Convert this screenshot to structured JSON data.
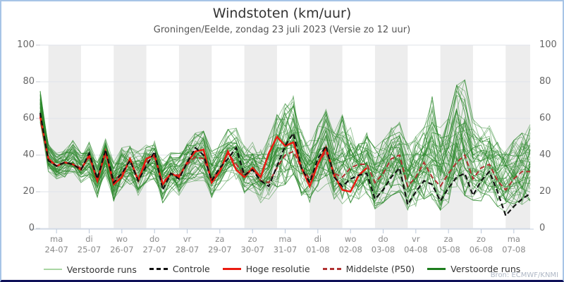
{
  "header": {
    "title": "Windstoten (km/uur)",
    "subtitle": "Groningen/Eelde, zondag 23 juli 2023 (Versie zo 12 uur)"
  },
  "source": "Bron: ECMWF/KNMI",
  "colors": {
    "frame_border": "#a7c4e6",
    "frame_bottom": "#0e1058",
    "band_gray": "#ededed",
    "gridline": "#dfe3ea",
    "axis_line": "#c2cede",
    "ensemble_green": "#2d8a2d",
    "legend_light_green": "#a9d6a3",
    "control_black": "#111111",
    "hres_red": "#ea1a10",
    "p50_darkred": "#b13232",
    "dark_green": "#1d7d1d",
    "text_title": "#333333",
    "text_axis": "#8a8a8a"
  },
  "chart_data": {
    "type": "line",
    "title": "Windstoten (km/uur)",
    "subtitle": "Groningen/Eelde, zondag 23 juli 2023 (Versie zo 12 uur)",
    "ylabel": "",
    "xlabel": "",
    "ylim": [
      0,
      100
    ],
    "yticks": [
      0,
      20,
      40,
      60,
      80,
      100
    ],
    "grid": true,
    "legend_position": "bottom",
    "x_start": "2023-07-23 12:00",
    "x_step_hours": 6,
    "n_points": 61,
    "x_tick_labels": [
      {
        "day": "ma",
        "date": "24-07"
      },
      {
        "day": "di",
        "date": "25-07"
      },
      {
        "day": "wo",
        "date": "26-07"
      },
      {
        "day": "do",
        "date": "27-07"
      },
      {
        "day": "vr",
        "date": "28-07"
      },
      {
        "day": "za",
        "date": "29-07"
      },
      {
        "day": "zo",
        "date": "30-07"
      },
      {
        "day": "ma",
        "date": "31-07"
      },
      {
        "day": "di",
        "date": "01-08"
      },
      {
        "day": "wo",
        "date": "02-08"
      },
      {
        "day": "do",
        "date": "03-08"
      },
      {
        "day": "vr",
        "date": "04-08"
      },
      {
        "day": "za",
        "date": "05-08"
      },
      {
        "day": "zo",
        "date": "06-08"
      },
      {
        "day": "ma",
        "date": "07-08"
      }
    ],
    "series": [
      {
        "name": "Controle",
        "style": "dashed-black",
        "values": [
          63,
          37,
          34,
          36,
          35,
          32,
          41,
          27,
          43,
          25,
          30,
          37,
          26,
          34,
          42,
          21,
          30,
          27,
          36,
          44,
          40,
          26,
          33,
          38,
          44,
          29,
          32,
          26,
          23,
          34,
          45,
          52,
          33,
          25,
          38,
          45,
          28,
          23,
          27,
          29,
          30,
          16,
          21,
          28,
          33,
          13,
          20,
          26,
          24,
          15,
          22,
          28,
          30,
          18,
          26,
          31,
          20,
          7,
          12,
          16,
          19
        ]
      },
      {
        "name": "Hoge resolutie",
        "style": "solid-red",
        "values": [
          61,
          38,
          34,
          36,
          35,
          32,
          40,
          26,
          42,
          24,
          28,
          38,
          26,
          38,
          40,
          24,
          30,
          28,
          36,
          42,
          43,
          25,
          31,
          42,
          32,
          28,
          33,
          28,
          41,
          50,
          45,
          47,
          33,
          23,
          35,
          44,
          29,
          21,
          20,
          29,
          33
        ]
      },
      {
        "name": "Middelste (P50)",
        "style": "dashed-darkred",
        "values": [
          62,
          37,
          34,
          36,
          35,
          33,
          39,
          27,
          41,
          26,
          30,
          37,
          27,
          36,
          39,
          25,
          30,
          29,
          35,
          39,
          38,
          27,
          32,
          41,
          35,
          29,
          33,
          26,
          25,
          33,
          40,
          42,
          33,
          27,
          35,
          42,
          30,
          28,
          33,
          35,
          35,
          25,
          30,
          38,
          40,
          23,
          28,
          36,
          28,
          23,
          30,
          36,
          40,
          27,
          33,
          35,
          26,
          21,
          27,
          31,
          31
        ]
      }
    ],
    "ensemble": {
      "name": "Verstoorde runs",
      "count": 48,
      "min": [
        57,
        31,
        27,
        28,
        29,
        25,
        28,
        17,
        29,
        15,
        22,
        24,
        18,
        25,
        26,
        14,
        20,
        18,
        24,
        26,
        26,
        17,
        21,
        26,
        24,
        18,
        20,
        14,
        16,
        22,
        24,
        24,
        18,
        14,
        20,
        24,
        16,
        12,
        14,
        16,
        18,
        10,
        14,
        18,
        20,
        10,
        12,
        16,
        14,
        10,
        14,
        18,
        18,
        12,
        15,
        18,
        12,
        9,
        11,
        13,
        15
      ],
      "max": [
        75,
        46,
        41,
        43,
        48,
        41,
        47,
        36,
        49,
        36,
        44,
        45,
        42,
        46,
        48,
        38,
        43,
        41,
        48,
        52,
        53,
        42,
        46,
        54,
        55,
        45,
        48,
        44,
        50,
        62,
        68,
        75,
        55,
        48,
        56,
        66,
        52,
        62,
        55,
        48,
        52,
        44,
        48,
        55,
        58,
        46,
        50,
        55,
        72,
        55,
        60,
        78,
        81,
        60,
        55,
        56,
        48,
        42,
        48,
        52,
        57
      ]
    },
    "legend": [
      {
        "label": "Verstoorde runs",
        "style": "thin-green"
      },
      {
        "label": "Controle",
        "style": "dashed-black"
      },
      {
        "label": "Hoge resolutie",
        "style": "solid-red"
      },
      {
        "label": "Middelste (P50)",
        "style": "dashed-darkred"
      },
      {
        "label": "Verstoorde runs",
        "style": "solid-darkgreen"
      }
    ]
  }
}
